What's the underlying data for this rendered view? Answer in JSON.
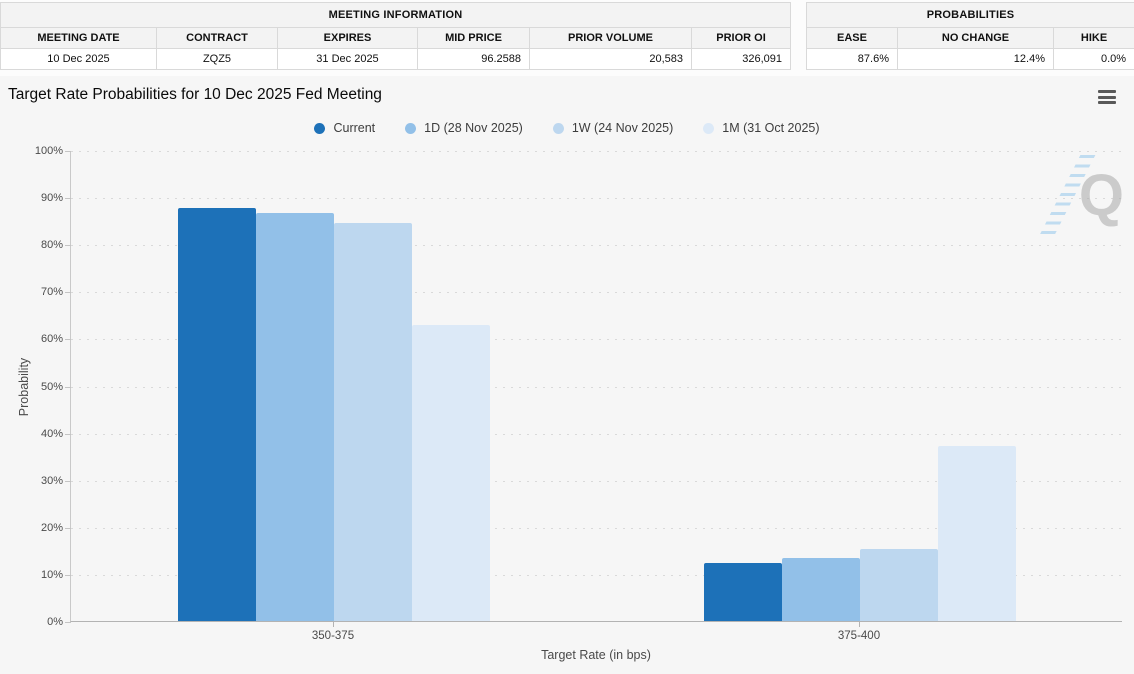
{
  "meeting_info": {
    "title": "MEETING INFORMATION",
    "columns": [
      "MEETING DATE",
      "CONTRACT",
      "EXPIRES",
      "MID PRICE",
      "PRIOR VOLUME",
      "PRIOR OI"
    ],
    "row": [
      "10 Dec 2025",
      "ZQZ5",
      "31 Dec 2025",
      "96.2588",
      "20,583",
      "326,091"
    ]
  },
  "probabilities": {
    "title": "PROBABILITIES",
    "columns": [
      "EASE",
      "NO CHANGE",
      "HIKE"
    ],
    "row": [
      "87.6%",
      "12.4%",
      "0.0%"
    ]
  },
  "chart": {
    "title": "Target Rate Probabilities for 10 Dec 2025 Fed Meeting",
    "menu_icon": "hamburger-icon"
  },
  "watermark": {
    "letter": "Q"
  },
  "chart_data": {
    "type": "bar",
    "title": "Target Rate Probabilities for 10 Dec 2025 Fed Meeting",
    "categories": [
      "350-375",
      "375-400"
    ],
    "series": [
      {
        "name": "Current",
        "color": "#1d71b8",
        "values": [
          87.6,
          12.4
        ]
      },
      {
        "name": "1D (28 Nov 2025)",
        "color": "#92c0e8",
        "values": [
          86.6,
          13.4
        ]
      },
      {
        "name": "1W (24 Nov 2025)",
        "color": "#bdd7ef",
        "values": [
          84.6,
          15.4
        ]
      },
      {
        "name": "1M (31 Oct 2025)",
        "color": "#dce9f7",
        "values": [
          62.9,
          37.1
        ]
      }
    ],
    "xlabel": "Target Rate (in bps)",
    "ylabel": "Probability",
    "ylim": [
      0,
      100
    ],
    "ytick_step": 10,
    "ytick_format": "%",
    "grid": "dotted",
    "legend_position": "top-center",
    "background": "#f6f6f6"
  }
}
